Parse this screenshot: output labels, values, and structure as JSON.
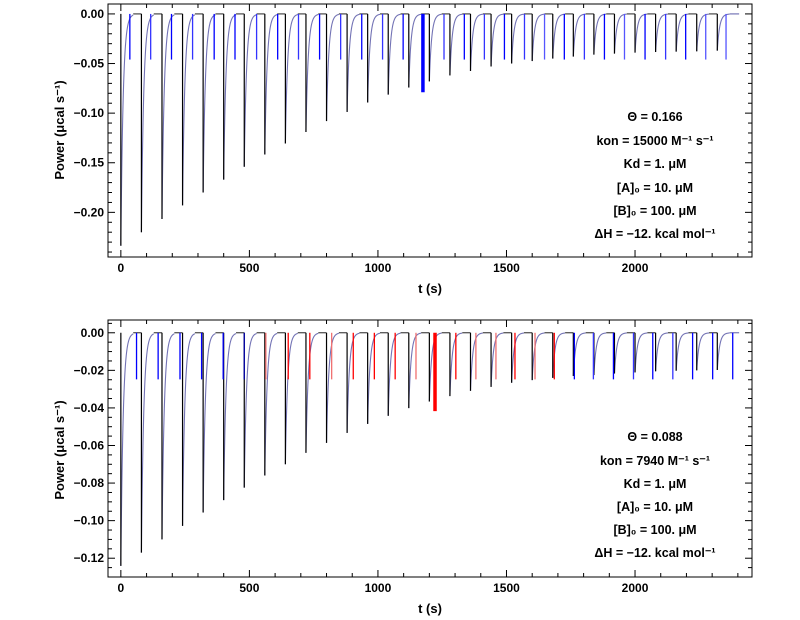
{
  "chart_data": [
    {
      "type": "line",
      "xlabel": "t (s)",
      "ylabel": "Power (μcal s⁻¹)",
      "xlim": [
        -50,
        2455
      ],
      "ylim": [
        -0.245,
        0.01
      ],
      "x_ticks": [
        0,
        500,
        1000,
        1500,
        2000
      ],
      "x_tick_labels": [
        "0",
        "500",
        "1000",
        "1500",
        "2000"
      ],
      "x_minor_step": 100,
      "y_ticks": [
        0,
        -0.05,
        -0.1,
        -0.15,
        -0.2
      ],
      "y_tick_labels": [
        "0.00",
        "−0.05",
        "−0.10",
        "−0.15",
        "−0.20"
      ],
      "y_minor_step": 0.01,
      "grid": false,
      "injection_interval_s": 80,
      "injection_times": [
        0,
        80,
        160,
        240,
        320,
        400,
        480,
        560,
        640,
        720,
        800,
        880,
        960,
        1040,
        1120,
        1200,
        1280,
        1360,
        1440,
        1520,
        1600,
        1680,
        1760,
        1840,
        1920,
        2000,
        2080,
        2160,
        2240,
        2320
      ],
      "peak_power": [
        -0.2336,
        -0.22,
        -0.2067,
        -0.193,
        -0.18,
        -0.167,
        -0.154,
        -0.1417,
        -0.1306,
        -0.119,
        -0.108,
        -0.0988,
        -0.0893,
        -0.0813,
        -0.0742,
        -0.068,
        -0.062,
        -0.0575,
        -0.053,
        -0.05,
        -0.0475,
        -0.045,
        -0.043,
        -0.041,
        -0.04,
        -0.039,
        -0.0384,
        -0.038,
        -0.0377,
        -0.037
      ],
      "curve_end_s": 2405,
      "markers": {
        "times": [
          35,
          116,
          197,
          279,
          363,
          444,
          528,
          610,
          691,
          773,
          855,
          937,
          1018,
          1098,
          1175,
          1257,
          1336,
          1414,
          1492,
          1570,
          1648,
          1725,
          1803,
          1881,
          1959,
          2039,
          2119,
          2197,
          2275,
          2354
        ],
        "depth": -0.046,
        "highlight_index": 14,
        "highlight_depth": -0.079,
        "colors": [
          "#0000ff",
          "#3333ff",
          "#0000ff",
          "#3333ff",
          "#0000ff",
          "#0000ff",
          "#3333ff",
          "#0000ff",
          "#3333ff",
          "#0000ff",
          "#3333ff",
          "#0000ff",
          "#3333ff",
          "#0000ff",
          "#0000ff",
          "#3333ff",
          "#0000ff",
          "#3333ff",
          "#0000ff",
          "#3333ff",
          "#5555ff",
          "#0000ff",
          "#3333ff",
          "#0000ff",
          "#5555ff",
          "#0000ff",
          "#3333ff",
          "#0000ff",
          "#5555ff",
          "#5555ff"
        ]
      },
      "annotations": [
        "Θ = 0.166",
        "kon = 15000 M⁻¹ s⁻¹",
        "Kd = 1. μM",
        "[A]₀ = 10. μM",
        "[B]₀ = 100. μM",
        "ΔH = −12. kcal mol⁻¹"
      ]
    },
    {
      "type": "line",
      "xlabel": "t (s)",
      "ylabel": "Power (μcal s⁻¹)",
      "xlim": [
        -50,
        2455
      ],
      "ylim": [
        -0.13,
        0.0068
      ],
      "x_ticks": [
        0,
        500,
        1000,
        1500,
        2000
      ],
      "x_tick_labels": [
        "0",
        "500",
        "1000",
        "1500",
        "2000"
      ],
      "x_minor_step": 100,
      "y_ticks": [
        0,
        -0.02,
        -0.04,
        -0.06,
        -0.08,
        -0.1,
        -0.12
      ],
      "y_tick_labels": [
        "0.00",
        "−0.02",
        "−0.04",
        "−0.06",
        "−0.08",
        "−0.10",
        "−0.12"
      ],
      "y_minor_step": 0.005,
      "grid": false,
      "injection_interval_s": 80,
      "injection_times": [
        0,
        80,
        160,
        240,
        320,
        400,
        480,
        560,
        640,
        720,
        800,
        880,
        960,
        1040,
        1120,
        1200,
        1280,
        1360,
        1440,
        1520,
        1600,
        1680,
        1760,
        1840,
        1920,
        2000,
        2080,
        2160,
        2240,
        2320
      ],
      "peak_power": [
        -0.1241,
        -0.117,
        -0.11,
        -0.1028,
        -0.0957,
        -0.0891,
        -0.0824,
        -0.076,
        -0.07,
        -0.0639,
        -0.0586,
        -0.0533,
        -0.0485,
        -0.0442,
        -0.0401,
        -0.0366,
        -0.0337,
        -0.0309,
        -0.0288,
        -0.0266,
        -0.0252,
        -0.024,
        -0.023,
        -0.0225,
        -0.0217,
        -0.0211,
        -0.0205,
        -0.0202,
        -0.02,
        -0.0198
      ],
      "curve_end_s": 2405,
      "markers": {
        "times": [
          61,
          145,
          230,
          314,
          398,
          480,
          564,
          651,
          735,
          820,
          904,
          986,
          1067,
          1148,
          1222,
          1303,
          1381,
          1459,
          1533,
          1611,
          1686,
          1764,
          1838,
          1916,
          1994,
          2069,
          2147,
          2224,
          2302,
          2380
        ],
        "depth": -0.0248,
        "highlight_index": 14,
        "highlight_depth": -0.0417,
        "colors": [
          "#0000ff",
          "#0000ff",
          "#0000ff",
          "#0000ff",
          "#0000ff",
          "#0000aa",
          "#f07070",
          "#ff0000",
          "#ff0000",
          "#f07070",
          "#ff0000",
          "#ff0000",
          "#ff0000",
          "#f07070",
          "#ff0000",
          "#ff0000",
          "#f07070",
          "#f07070",
          "#ff0000",
          "#f07070",
          "#ff0000",
          "#0000ff",
          "#3333ff",
          "#0000ff",
          "#3333ff",
          "#0000ff",
          "#3333ff",
          "#0000ff",
          "#0000ff",
          "#0000ff"
        ]
      },
      "annotations": [
        "Θ = 0.088",
        "kon = 7940 M⁻¹ s⁻¹",
        "Kd = 1. μM",
        "[A]₀ = 10. μM",
        "[B]₀ = 100. μM",
        "ΔH = −12. kcal mol⁻¹"
      ]
    }
  ],
  "colors": {
    "spike": "#000000",
    "recovery_curve": "#5a5aa8",
    "frame": "#000000"
  }
}
